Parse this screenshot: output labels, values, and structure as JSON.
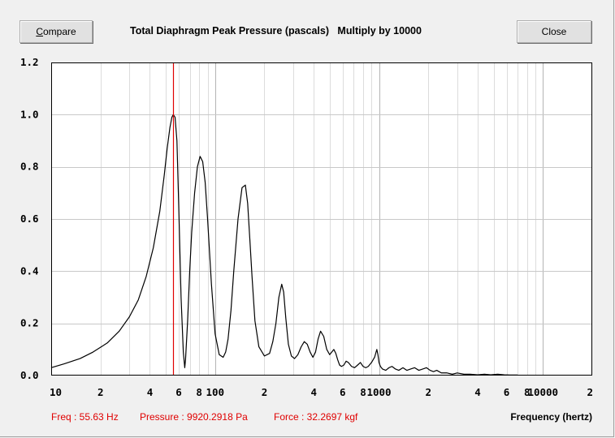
{
  "toolbar": {
    "compare_label": "Compare",
    "compare_accel": "C",
    "compare_rest": "ompare",
    "close_label": "Close"
  },
  "title": "Total Diaphragm Peak Pressure (pascals)   Multiply by 10000",
  "status": {
    "freq": "Freq : 55.63 Hz",
    "pressure": "Pressure : 9920.2918 Pa",
    "force": "Force : 32.2697 kgf"
  },
  "colors": {
    "curve": "#000000",
    "cursor": "#e00000",
    "grid": "#c8c8c8",
    "plot_bg": "#ffffff"
  },
  "chart_data": {
    "type": "line",
    "title": "Total Diaphragm Peak Pressure (pascals)   Multiply by 10000",
    "xlabel": "Frequency (hertz)",
    "ylabel": "",
    "x_scale": "log",
    "xlim": [
      10,
      20000
    ],
    "ylim": [
      0,
      1.2
    ],
    "grid": true,
    "y_ticks": [
      "0.0",
      "0.2",
      "0.4",
      "0.6",
      "0.8",
      "1.0",
      "1.2"
    ],
    "x_ticks": [
      {
        "value": 10,
        "label": "10"
      },
      {
        "value": 20,
        "label": "2"
      },
      {
        "value": 40,
        "label": "4"
      },
      {
        "value": 60,
        "label": "6"
      },
      {
        "value": 80,
        "label": "8"
      },
      {
        "value": 100,
        "label": "100"
      },
      {
        "value": 200,
        "label": "2"
      },
      {
        "value": 400,
        "label": "4"
      },
      {
        "value": 600,
        "label": "6"
      },
      {
        "value": 800,
        "label": "8"
      },
      {
        "value": 1000,
        "label": "1000"
      },
      {
        "value": 2000,
        "label": "2"
      },
      {
        "value": 4000,
        "label": "4"
      },
      {
        "value": 6000,
        "label": "6"
      },
      {
        "value": 8000,
        "label": "8"
      },
      {
        "value": 10000,
        "label": "10000"
      },
      {
        "value": 20000,
        "label": "2"
      }
    ],
    "cursor_x": 55.63,
    "series": [
      {
        "x": [
          10,
          12,
          15,
          18,
          22,
          26,
          30,
          34,
          38,
          42,
          46,
          49,
          51,
          53,
          54.5,
          55.6,
          57,
          58.5,
          60,
          62,
          64,
          65.3,
          66,
          68,
          70,
          72,
          75,
          78,
          81,
          84,
          87,
          90,
          95,
          100,
          106,
          112,
          116,
          120,
          125,
          130,
          138,
          146,
          153,
          158,
          163,
          168,
          175,
          185,
          200,
          215,
          225,
          235,
          245,
          255,
          262,
          270,
          280,
          292,
          305,
          320,
          335,
          350,
          365,
          380,
          395,
          410,
          425,
          440,
          460,
          480,
          500,
          515,
          530,
          545,
          560,
          575,
          590,
          610,
          630,
          650,
          680,
          710,
          740,
          770,
          800,
          830,
          860,
          900,
          940,
          970,
          985,
          1000,
          1020,
          1050,
          1100,
          1150,
          1200,
          1260,
          1320,
          1400,
          1480,
          1560,
          1650,
          1750,
          1850,
          1950,
          2050,
          2150,
          2250,
          2400,
          2600,
          2800,
          3000,
          3300,
          3600,
          4000,
          4400,
          4800,
          5300,
          5800,
          6300,
          7000
        ],
        "y": [
          0.03,
          0.045,
          0.065,
          0.09,
          0.125,
          0.17,
          0.225,
          0.29,
          0.38,
          0.49,
          0.63,
          0.77,
          0.87,
          0.95,
          0.99,
          1.0,
          0.99,
          0.9,
          0.65,
          0.3,
          0.09,
          0.03,
          0.06,
          0.21,
          0.4,
          0.55,
          0.7,
          0.8,
          0.84,
          0.82,
          0.74,
          0.6,
          0.35,
          0.16,
          0.08,
          0.07,
          0.09,
          0.14,
          0.25,
          0.4,
          0.6,
          0.72,
          0.73,
          0.66,
          0.52,
          0.38,
          0.21,
          0.11,
          0.075,
          0.085,
          0.13,
          0.2,
          0.3,
          0.35,
          0.32,
          0.22,
          0.12,
          0.075,
          0.065,
          0.08,
          0.11,
          0.13,
          0.12,
          0.09,
          0.07,
          0.09,
          0.14,
          0.17,
          0.15,
          0.1,
          0.08,
          0.09,
          0.1,
          0.085,
          0.06,
          0.04,
          0.035,
          0.04,
          0.055,
          0.05,
          0.035,
          0.03,
          0.04,
          0.05,
          0.035,
          0.03,
          0.035,
          0.05,
          0.07,
          0.1,
          0.08,
          0.05,
          0.035,
          0.025,
          0.02,
          0.03,
          0.035,
          0.025,
          0.02,
          0.03,
          0.02,
          0.025,
          0.03,
          0.02,
          0.025,
          0.03,
          0.02,
          0.015,
          0.02,
          0.01,
          0.01,
          0.005,
          0.01,
          0.005,
          0.005,
          0.003,
          0.005,
          0.003,
          0.005,
          0.003,
          0.002,
          0.002
        ]
      }
    ]
  }
}
